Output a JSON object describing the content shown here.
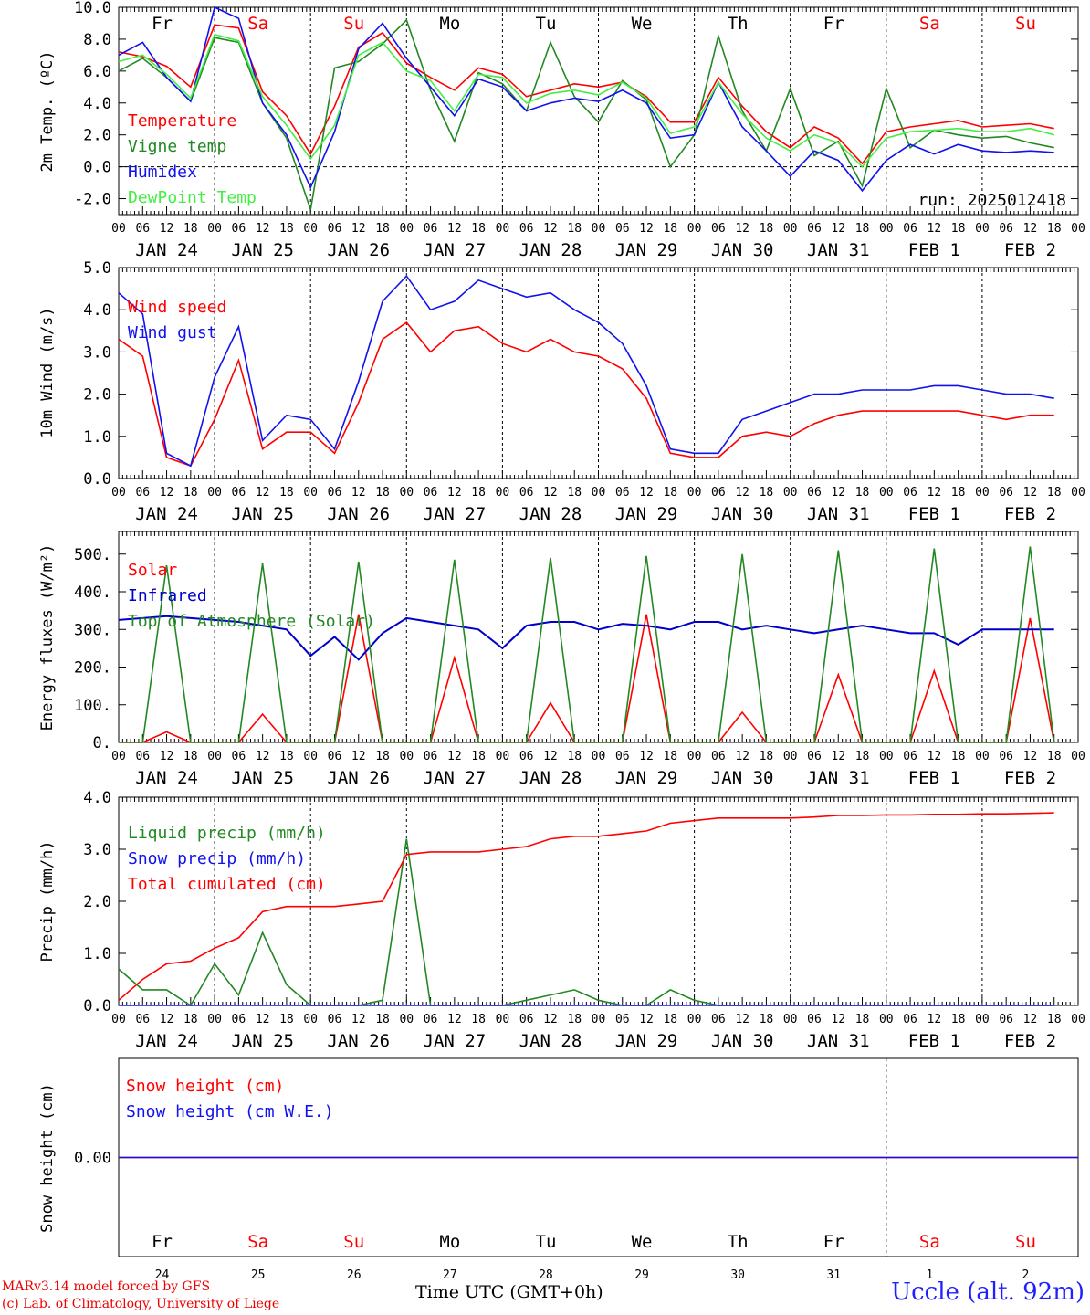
{
  "chart_data": [
    {
      "type": "line",
      "ylabel": "2m Temp. (ºC)",
      "ylim": [
        -3,
        10
      ],
      "yticks": [
        "10.0",
        "8.0",
        "6.0",
        "4.0",
        "2.0",
        "0.0",
        "-2.0"
      ],
      "x_hours": [
        0,
        6,
        12,
        18,
        24,
        30,
        36,
        42,
        48,
        54,
        60,
        66,
        72,
        78,
        84,
        90,
        96,
        102,
        108,
        114,
        120,
        126,
        132,
        138,
        144,
        150,
        156,
        162,
        168,
        174,
        180,
        186,
        192,
        198,
        204,
        210,
        216,
        222,
        228,
        234
      ],
      "series": [
        {
          "name": "Temperature",
          "color": "#ff0000",
          "values": [
            7.2,
            6.9,
            6.3,
            5.0,
            8.9,
            8.7,
            4.7,
            3.2,
            0.8,
            3.8,
            7.5,
            8.4,
            6.5,
            5.6,
            4.8,
            6.2,
            5.8,
            4.4,
            4.8,
            5.2,
            5.0,
            5.3,
            4.4,
            2.8,
            2.8,
            5.6,
            3.8,
            2.2,
            1.2,
            2.5,
            1.8,
            0.2,
            2.2,
            2.5,
            2.7,
            2.9,
            2.5,
            2.6,
            2.7,
            2.4
          ]
        },
        {
          "name": "Vigne temp",
          "color": "#228822",
          "values": [
            6.0,
            6.8,
            5.6,
            4.1,
            8.1,
            7.8,
            4.0,
            1.8,
            -2.7,
            6.2,
            6.6,
            7.7,
            9.2,
            4.8,
            1.6,
            5.9,
            5.2,
            3.5,
            7.8,
            4.4,
            2.8,
            5.4,
            4.2,
            0.0,
            2.0,
            8.2,
            3.5,
            1.0,
            4.9,
            0.7,
            1.6,
            -1.2,
            4.9,
            1.2,
            2.3,
            2.0,
            1.8,
            1.9,
            1.5,
            1.2
          ]
        },
        {
          "name": "Humidex",
          "color": "#1111ee",
          "values": [
            7.0,
            7.8,
            5.6,
            4.1,
            10.0,
            9.3,
            4.0,
            2.0,
            -1.3,
            2.2,
            7.4,
            9.0,
            6.8,
            5.0,
            3.2,
            5.5,
            5.0,
            3.5,
            4.0,
            4.3,
            4.1,
            4.8,
            4.0,
            1.8,
            2.0,
            5.3,
            2.5,
            1.0,
            -0.6,
            1.0,
            0.4,
            -1.5,
            0.4,
            1.4,
            0.8,
            1.4,
            1.0,
            0.9,
            1.0,
            0.9
          ]
        },
        {
          "name": "DewPoint Temp",
          "color": "#44ee44",
          "values": [
            6.6,
            7.0,
            5.8,
            4.3,
            8.3,
            7.9,
            4.4,
            2.6,
            0.5,
            2.6,
            7.0,
            7.8,
            6.0,
            5.4,
            3.5,
            5.8,
            5.6,
            4.0,
            4.6,
            4.8,
            4.5,
            5.3,
            4.3,
            2.1,
            2.5,
            5.3,
            3.3,
            1.8,
            1.0,
            2.0,
            1.5,
            0.0,
            1.8,
            2.2,
            2.3,
            2.4,
            2.2,
            2.2,
            2.4,
            2.0
          ]
        }
      ],
      "run_label": "run: 2025012418",
      "day_names": [
        {
          "text": "Fr",
          "color": "#000000"
        },
        {
          "text": "Sa",
          "color": "#ff0000"
        },
        {
          "text": "Su",
          "color": "#ff0000"
        },
        {
          "text": "Mo",
          "color": "#000000"
        },
        {
          "text": "Tu",
          "color": "#000000"
        },
        {
          "text": "We",
          "color": "#000000"
        },
        {
          "text": "Th",
          "color": "#000000"
        },
        {
          "text": "Fr",
          "color": "#000000"
        },
        {
          "text": "Sa",
          "color": "#ff0000"
        },
        {
          "text": "Su",
          "color": "#ff0000"
        }
      ]
    },
    {
      "type": "line",
      "ylabel": "10m Wind (m/s)",
      "ylim": [
        0,
        5
      ],
      "yticks": [
        "5.0",
        "4.0",
        "3.0",
        "2.0",
        "1.0",
        "0.0"
      ],
      "x_hours": [
        0,
        6,
        12,
        18,
        24,
        30,
        36,
        42,
        48,
        54,
        60,
        66,
        72,
        78,
        84,
        90,
        96,
        102,
        108,
        114,
        120,
        126,
        132,
        138,
        144,
        150,
        156,
        162,
        168,
        174,
        180,
        186,
        192,
        198,
        204,
        210,
        216,
        222,
        228,
        234
      ],
      "series": [
        {
          "name": "Wind speed",
          "color": "#ff0000",
          "values": [
            3.3,
            2.9,
            0.5,
            0.3,
            1.4,
            2.8,
            0.7,
            1.1,
            1.1,
            0.6,
            1.8,
            3.3,
            3.7,
            3.0,
            3.5,
            3.6,
            3.2,
            3.0,
            3.3,
            3.0,
            2.9,
            2.6,
            1.9,
            0.6,
            0.5,
            0.5,
            1.0,
            1.1,
            1.0,
            1.3,
            1.5,
            1.6,
            1.6,
            1.6,
            1.6,
            1.6,
            1.5,
            1.4,
            1.5,
            1.5
          ]
        },
        {
          "name": "Wind gust",
          "color": "#1111ee",
          "values": [
            4.4,
            3.9,
            0.6,
            0.3,
            2.4,
            3.6,
            0.9,
            1.5,
            1.4,
            0.7,
            2.3,
            4.2,
            4.8,
            4.0,
            4.2,
            4.7,
            4.5,
            4.3,
            4.4,
            4.0,
            3.7,
            3.2,
            2.2,
            0.7,
            0.6,
            0.6,
            1.4,
            1.6,
            1.8,
            2.0,
            2.0,
            2.1,
            2.1,
            2.1,
            2.2,
            2.2,
            2.1,
            2.0,
            2.0,
            1.9
          ]
        }
      ]
    },
    {
      "type": "line",
      "ylabel": "Energy fluxes (W/m²)",
      "ylim": [
        0,
        560
      ],
      "yticks": [
        "500.",
        "400.",
        "300.",
        "200.",
        "100.",
        "0."
      ],
      "x_hours": [
        0,
        6,
        12,
        18,
        24,
        30,
        36,
        42,
        48,
        54,
        60,
        66,
        72,
        78,
        84,
        90,
        96,
        102,
        108,
        114,
        120,
        126,
        132,
        138,
        144,
        150,
        156,
        162,
        168,
        174,
        180,
        186,
        192,
        198,
        204,
        210,
        216,
        222,
        228,
        234
      ],
      "series": [
        {
          "name": "Solar",
          "color": "#ff0000",
          "values": [
            0,
            0,
            28,
            0,
            0,
            0,
            75,
            0,
            0,
            0,
            340,
            0,
            0,
            0,
            225,
            0,
            0,
            0,
            105,
            0,
            0,
            0,
            340,
            0,
            0,
            0,
            80,
            0,
            0,
            0,
            180,
            0,
            0,
            0,
            190,
            0,
            0,
            0,
            330,
            0
          ]
        },
        {
          "name": "Infrared",
          "color": "#0000cc",
          "values": [
            325,
            330,
            335,
            330,
            325,
            320,
            310,
            300,
            230,
            280,
            220,
            290,
            330,
            320,
            310,
            300,
            250,
            310,
            320,
            320,
            300,
            315,
            310,
            300,
            320,
            320,
            300,
            310,
            300,
            290,
            300,
            310,
            300,
            290,
            290,
            260,
            300,
            300,
            300,
            300
          ]
        },
        {
          "name": "Top of Atmosphere (Solar)",
          "color": "#228822",
          "values": [
            0,
            0,
            470,
            0,
            0,
            0,
            475,
            0,
            0,
            0,
            480,
            0,
            0,
            0,
            485,
            0,
            0,
            0,
            490,
            0,
            0,
            0,
            495,
            0,
            0,
            0,
            500,
            0,
            0,
            0,
            510,
            0,
            0,
            0,
            515,
            0,
            0,
            0,
            520,
            0
          ]
        }
      ]
    },
    {
      "type": "line",
      "ylabel": "Precip (mm/h)",
      "ylim": [
        0,
        4
      ],
      "yticks": [
        "4.0",
        "3.0",
        "2.0",
        "1.0",
        "0.0"
      ],
      "x_hours": [
        0,
        6,
        12,
        18,
        24,
        30,
        36,
        42,
        48,
        54,
        60,
        66,
        72,
        78,
        84,
        90,
        96,
        102,
        108,
        114,
        120,
        126,
        132,
        138,
        144,
        150,
        156,
        162,
        168,
        174,
        180,
        186,
        192,
        198,
        204,
        210,
        216,
        222,
        228,
        234
      ],
      "series": [
        {
          "name": "Liquid precip (mm/h)",
          "color": "#228822",
          "values": [
            0.7,
            0.3,
            0.3,
            0.0,
            0.8,
            0.2,
            1.4,
            0.4,
            0.0,
            0.0,
            0.0,
            0.1,
            3.2,
            0.0,
            0.0,
            0.0,
            0.0,
            0.1,
            0.2,
            0.3,
            0.1,
            0.0,
            0.0,
            0.3,
            0.1,
            0.0,
            0.0,
            0.0,
            0.0,
            0.0,
            0.0,
            0.0,
            0.0,
            0.0,
            0.0,
            0.0,
            0.0,
            0.0,
            0.0,
            0.0
          ]
        },
        {
          "name": "Snow precip (mm/h)",
          "color": "#1111ee",
          "values": [
            0,
            0,
            0,
            0,
            0,
            0,
            0,
            0,
            0,
            0,
            0,
            0,
            0,
            0,
            0,
            0,
            0,
            0,
            0,
            0,
            0,
            0,
            0,
            0,
            0,
            0,
            0,
            0,
            0,
            0,
            0,
            0,
            0,
            0,
            0,
            0,
            0,
            0,
            0,
            0
          ]
        },
        {
          "name": "Total cumulated (cm)",
          "color": "#ff0000",
          "values": [
            0.1,
            0.5,
            0.8,
            0.85,
            1.1,
            1.3,
            1.8,
            1.9,
            1.9,
            1.9,
            1.95,
            2.0,
            2.9,
            2.95,
            2.95,
            2.95,
            3.0,
            3.05,
            3.2,
            3.25,
            3.25,
            3.3,
            3.35,
            3.5,
            3.55,
            3.6,
            3.6,
            3.6,
            3.6,
            3.62,
            3.65,
            3.65,
            3.66,
            3.66,
            3.67,
            3.67,
            3.68,
            3.68,
            3.69,
            3.7
          ]
        }
      ]
    },
    {
      "type": "line",
      "ylabel": "Snow height (cm)",
      "ylim": [
        -1,
        1
      ],
      "yticks": [
        "0.00"
      ],
      "series": [
        {
          "name": "Snow height (cm)",
          "color": "#ff0000",
          "values": [
            0,
            0
          ]
        },
        {
          "name": "Snow height (cm W.E.)",
          "color": "#1111ee",
          "values": [
            0,
            0
          ]
        }
      ],
      "day_names": [
        {
          "text": "Fr",
          "color": "#000000"
        },
        {
          "text": "Sa",
          "color": "#ff0000"
        },
        {
          "text": "Su",
          "color": "#ff0000"
        },
        {
          "text": "Mo",
          "color": "#000000"
        },
        {
          "text": "Tu",
          "color": "#000000"
        },
        {
          "text": "We",
          "color": "#000000"
        },
        {
          "text": "Th",
          "color": "#000000"
        },
        {
          "text": "Fr",
          "color": "#000000"
        },
        {
          "text": "Sa",
          "color": "#ff0000"
        },
        {
          "text": "Su",
          "color": "#ff0000"
        }
      ],
      "day_numbers": [
        "24",
        "25",
        "26",
        "27",
        "28",
        "29",
        "30",
        "31",
        "1",
        "2"
      ]
    }
  ],
  "x_axis": {
    "hour_ticks": [
      "00",
      "06",
      "12",
      "18"
    ],
    "end_tick": "00",
    "date_labels": [
      "JAN 24",
      "JAN 25",
      "JAN 26",
      "JAN 27",
      "JAN 28",
      "JAN 29",
      "JAN 30",
      "JAN 31",
      "FEB  1",
      "FEB  2"
    ]
  },
  "footer": {
    "model_line1": "MARv3.14 model forced by GFS",
    "model_line2": "(c) Lab. of Climatology, University of Liege",
    "time_label": "Time UTC (GMT+0h)",
    "site": "Uccle (alt. 92m)"
  }
}
